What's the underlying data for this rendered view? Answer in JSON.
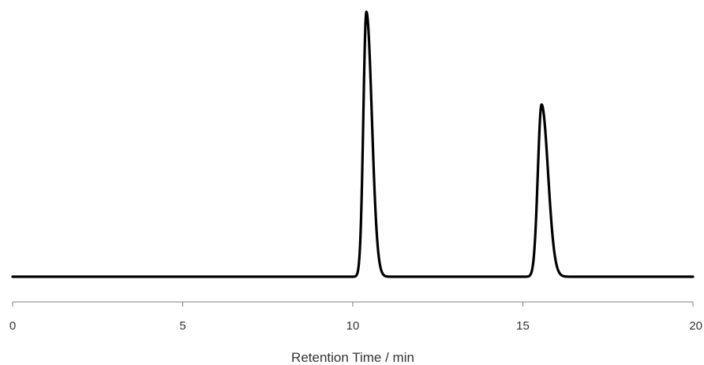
{
  "chart_data": {
    "type": "line",
    "title": "",
    "xlabel": "Retention Time / min",
    "ylabel": "",
    "xlim": [
      0,
      20
    ],
    "ylim": [
      0,
      1
    ],
    "x_ticks": [
      "0",
      "5",
      "10",
      "15",
      "20"
    ],
    "y_axis_visible": false,
    "grid": false,
    "legend": "none",
    "baseline": 0.0,
    "peaks": [
      {
        "retention_time": 10.4,
        "height": 1.0,
        "width_sigma": 0.09,
        "tailing": 0.07
      },
      {
        "retention_time": 15.55,
        "height": 0.65,
        "width_sigma": 0.11,
        "tailing": 0.08
      }
    ],
    "colors": {
      "trace": "#000000",
      "axis": "#7f7f7f",
      "text": "#333333"
    }
  }
}
